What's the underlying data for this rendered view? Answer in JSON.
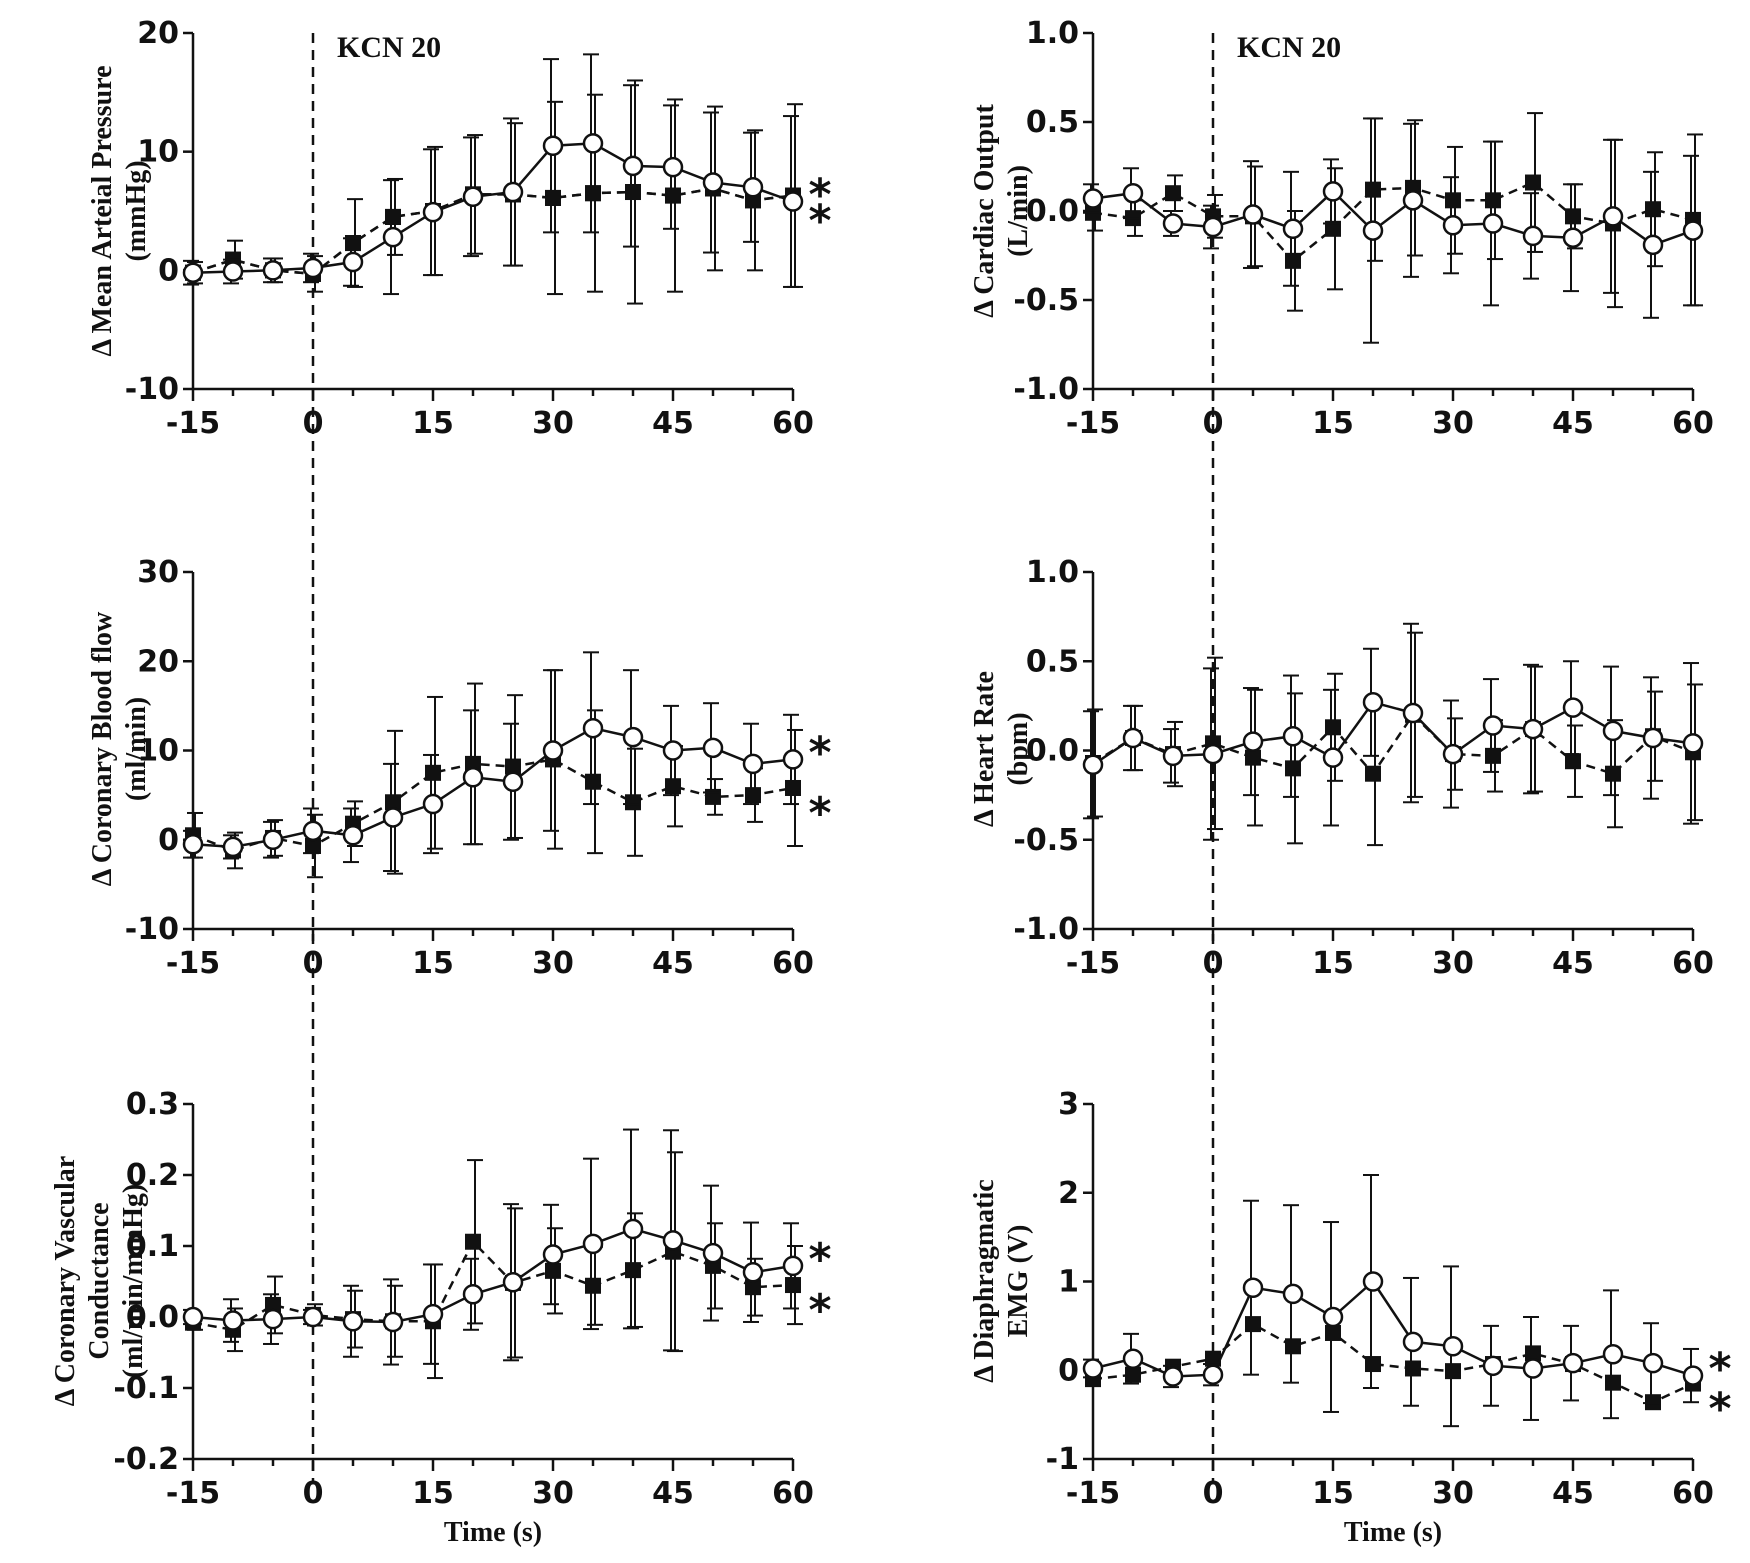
{
  "chart_data": [
    {
      "id": "map",
      "type": "line",
      "ylabel_lines": [
        "Δ Mean Arteial Pressure",
        "(mmHg)"
      ],
      "xlabel": "",
      "annotation": "KCN 20",
      "ylim": [
        -10,
        20
      ],
      "yticks": [
        20,
        10,
        0,
        -10
      ],
      "ytick_labels": [
        "20",
        "10",
        "0",
        "-10"
      ],
      "xlim": [
        -15,
        60
      ],
      "xticks": [
        -15,
        0,
        15,
        30,
        45,
        60
      ],
      "xtick_labels": [
        "-15",
        "0",
        "15",
        "30",
        "45",
        "60"
      ],
      "markers": [
        "*",
        "*"
      ],
      "x": [
        -15,
        -10,
        -5,
        0,
        5,
        10,
        15,
        20,
        25,
        30,
        35,
        40,
        45,
        50,
        55,
        60
      ],
      "series": [
        {
          "name": "open-circles",
          "marker": "circle",
          "values": [
            -0.2,
            -0.1,
            0.0,
            0.2,
            0.7,
            2.8,
            4.9,
            6.2,
            6.6,
            10.5,
            10.7,
            8.8,
            8.7,
            7.4,
            7.0,
            5.8
          ],
          "err": [
            1.0,
            1.0,
            1.0,
            1.2,
            2.0,
            4.8,
            5.3,
            5.0,
            6.2,
            7.3,
            7.5,
            6.8,
            5.2,
            5.9,
            4.6,
            7.2
          ]
        },
        {
          "name": "filled-squares",
          "marker": "square",
          "values": [
            -0.2,
            0.9,
            0.0,
            -0.3,
            2.3,
            4.5,
            5.0,
            6.4,
            6.4,
            6.1,
            6.5,
            6.6,
            6.3,
            6.9,
            5.9,
            6.3
          ]
        },
        {
          "name": "filled-squares",
          "marker": "square",
          "values": [
            -0.2,
            0.9,
            0.0,
            -0.3,
            2.3,
            4.5,
            5.0,
            6.4,
            6.4,
            6.1,
            6.5,
            6.6,
            6.3,
            6.9,
            5.9,
            6.3
          ],
          "err": [
            0.9,
            1.6,
            1.0,
            1.5,
            3.7,
            3.2,
            5.4,
            5.0,
            6.0,
            8.1,
            8.3,
            9.4,
            8.1,
            6.9,
            5.9,
            7.7
          ]
        }
      ]
    },
    {
      "id": "cbf",
      "type": "line",
      "ylabel_lines": [
        "Δ Coronary Blood flow",
        "(ml/min)"
      ],
      "xlabel": "",
      "annotation": "",
      "ylim": [
        -10,
        30
      ],
      "yticks": [
        30,
        20,
        10,
        0,
        -10
      ],
      "ytick_labels": [
        "30",
        "20",
        "10",
        "0",
        "-10"
      ],
      "xlim": [
        -15,
        60
      ],
      "xticks": [
        -15,
        0,
        15,
        30,
        45,
        60
      ],
      "xtick_labels": [
        "-15",
        "0",
        "15",
        "30",
        "45",
        "60"
      ],
      "markers": [
        "*",
        "*"
      ],
      "x": [
        -15,
        -10,
        -5,
        0,
        5,
        10,
        15,
        20,
        25,
        30,
        35,
        40,
        45,
        50,
        55,
        60
      ],
      "series": [
        {
          "name": "open-circles",
          "marker": "circle",
          "values": [
            -0.5,
            -0.8,
            0.0,
            1.0,
            0.5,
            2.5,
            4.0,
            7.0,
            6.5,
            10.0,
            12.5,
            11.5,
            10.0,
            10.3,
            8.5,
            9.0
          ],
          "err": [
            1.5,
            1.3,
            2.0,
            2.5,
            3.0,
            6.0,
            5.5,
            7.5,
            6.5,
            9.0,
            8.5,
            7.5,
            5.0,
            5.0,
            4.5,
            5.0
          ]
        },
        {
          "name": "filled-squares",
          "marker": "square",
          "values": [
            0.5,
            -1.2,
            0.2,
            -0.7,
            1.8,
            4.2,
            7.5,
            8.5,
            8.2,
            9.0,
            6.5,
            4.2,
            6.0,
            4.8,
            5.0,
            5.8
          ],
          "err": [
            2.5,
            2.0,
            2.0,
            3.5,
            2.5,
            8.0,
            8.5,
            9.0,
            8.0,
            10.0,
            8.0,
            6.0,
            4.5,
            2.0,
            3.0,
            6.5
          ]
        }
      ]
    },
    {
      "id": "cvc",
      "type": "line",
      "ylabel_lines": [
        "Δ Coronary Vascular",
        "Conductance",
        "(ml/min/mmHg)"
      ],
      "xlabel": "Time (s)",
      "annotation": "",
      "ylim": [
        -0.2,
        0.3
      ],
      "yticks": [
        0.3,
        0.2,
        0.1,
        0.0,
        -0.1,
        -0.2
      ],
      "ytick_labels": [
        "0.3",
        "0.2",
        "0.1",
        "0.0",
        "-0.1",
        "-0.2"
      ],
      "xlim": [
        -15,
        60
      ],
      "xticks": [
        -15,
        0,
        15,
        30,
        45,
        60
      ],
      "xtick_labels": [
        "-15",
        "0",
        "15",
        "30",
        "45",
        "60"
      ],
      "markers": [
        "*",
        "*"
      ],
      "x": [
        -15,
        -10,
        -5,
        0,
        5,
        10,
        15,
        20,
        25,
        30,
        35,
        40,
        45,
        50,
        55,
        60
      ],
      "series": [
        {
          "name": "open-circles",
          "marker": "circle",
          "values": [
            0.0,
            -0.005,
            -0.003,
            0.0,
            -0.006,
            -0.007,
            0.004,
            0.032,
            0.049,
            0.088,
            0.103,
            0.124,
            0.108,
            0.09,
            0.063,
            0.072
          ],
          "err": [
            0.01,
            0.03,
            0.035,
            0.01,
            0.05,
            0.06,
            0.07,
            0.05,
            0.11,
            0.07,
            0.12,
            0.14,
            0.155,
            0.095,
            0.07,
            0.06
          ]
        },
        {
          "name": "filled-squares",
          "marker": "square",
          "values": [
            -0.008,
            -0.018,
            0.017,
            0.003,
            -0.003,
            -0.006,
            -0.006,
            0.106,
            0.048,
            0.065,
            0.044,
            0.066,
            0.092,
            0.072,
            0.042,
            0.045
          ],
          "err": [
            0.01,
            0.03,
            0.04,
            0.015,
            0.04,
            0.05,
            0.08,
            0.115,
            0.105,
            0.06,
            0.055,
            0.08,
            0.14,
            0.06,
            0.04,
            0.055
          ]
        }
      ]
    },
    {
      "id": "co",
      "type": "line",
      "ylabel_lines": [
        "Δ Cardiac Output",
        "(L/min)"
      ],
      "xlabel": "",
      "annotation": "KCN 20",
      "ylim": [
        -1.0,
        1.0
      ],
      "yticks": [
        1.0,
        0.5,
        0.0,
        -0.5,
        -1.0
      ],
      "ytick_labels": [
        "1.0",
        "0.5",
        "0.0",
        "-0.5",
        "-1.0"
      ],
      "xlim": [
        -15,
        60
      ],
      "xticks": [
        -15,
        0,
        15,
        30,
        45,
        60
      ],
      "xtick_labels": [
        "-15",
        "0",
        "15",
        "30",
        "45",
        "60"
      ],
      "markers": [],
      "x": [
        -15,
        -10,
        -5,
        0,
        5,
        10,
        15,
        20,
        25,
        30,
        35,
        40,
        45,
        50,
        55,
        60
      ],
      "series": [
        {
          "name": "open-circles",
          "marker": "circle",
          "values": [
            0.07,
            0.1,
            -0.07,
            -0.09,
            -0.02,
            -0.1,
            0.11,
            -0.11,
            0.06,
            -0.08,
            -0.07,
            -0.14,
            -0.15,
            -0.03,
            -0.19,
            -0.11
          ],
          "err": [
            0.08,
            0.14,
            0.07,
            0.12,
            0.3,
            0.32,
            0.18,
            0.63,
            0.43,
            0.27,
            0.46,
            0.24,
            0.3,
            0.43,
            0.41,
            0.42
          ]
        },
        {
          "name": "filled-squares",
          "marker": "square",
          "values": [
            -0.01,
            -0.04,
            0.1,
            -0.03,
            -0.03,
            -0.28,
            -0.1,
            0.12,
            0.13,
            0.06,
            0.06,
            0.16,
            -0.03,
            -0.07,
            0.01,
            -0.05
          ],
          "err": [
            0.1,
            0.1,
            0.1,
            0.12,
            0.28,
            0.28,
            0.34,
            0.4,
            0.38,
            0.3,
            0.33,
            0.39,
            0.18,
            0.47,
            0.32,
            0.48
          ]
        }
      ]
    },
    {
      "id": "hr",
      "type": "line",
      "ylabel_lines": [
        "Δ Heart Rate",
        "(bpm)"
      ],
      "xlabel": "",
      "annotation": "",
      "ylim": [
        -1.0,
        1.0
      ],
      "yticks": [
        1.0,
        0.5,
        0.0,
        -0.5,
        -1.0
      ],
      "ytick_labels": [
        "1.0",
        "0.5",
        "0.0",
        "-0.5",
        "-1.0"
      ],
      "xlim": [
        -15,
        60
      ],
      "xticks": [
        -15,
        0,
        15,
        30,
        45,
        60
      ],
      "xtick_labels": [
        "-15",
        "0",
        "15",
        "30",
        "45",
        "60"
      ],
      "markers": [],
      "x": [
        -15,
        -10,
        -5,
        0,
        5,
        10,
        15,
        20,
        25,
        30,
        35,
        40,
        45,
        50,
        55,
        60
      ],
      "series": [
        {
          "name": "open-circles",
          "marker": "circle",
          "values": [
            -0.08,
            0.07,
            -0.03,
            -0.02,
            0.05,
            0.08,
            -0.04,
            0.27,
            0.21,
            -0.02,
            0.14,
            0.12,
            0.24,
            0.11,
            0.07,
            0.04
          ],
          "err": [
            0.3,
            0.18,
            0.15,
            0.48,
            0.3,
            0.34,
            0.38,
            0.3,
            0.5,
            0.3,
            0.26,
            0.36,
            0.26,
            0.36,
            0.34,
            0.45
          ]
        },
        {
          "name": "filled-squares",
          "marker": "square",
          "values": [
            -0.07,
            0.07,
            -0.02,
            0.04,
            -0.04,
            -0.1,
            0.13,
            -0.13,
            0.2,
            -0.02,
            -0.03,
            0.12,
            -0.06,
            -0.13,
            0.08,
            -0.01
          ],
          "err": [
            0.3,
            0.18,
            0.18,
            0.48,
            0.38,
            0.42,
            0.3,
            0.4,
            0.46,
            0.2,
            0.2,
            0.35,
            0.2,
            0.3,
            0.25,
            0.38
          ]
        }
      ]
    },
    {
      "id": "emg",
      "type": "line",
      "ylabel_lines": [
        "Δ Diaphragmatic",
        "EMG (V)"
      ],
      "xlabel": "Time (s)",
      "annotation": "",
      "ylim": [
        -1,
        3
      ],
      "yticks": [
        3,
        2,
        1,
        0,
        -1
      ],
      "ytick_labels": [
        "3",
        "2",
        "1",
        "0",
        "-1"
      ],
      "xlim": [
        -15,
        60
      ],
      "xticks": [
        -15,
        0,
        15,
        30,
        45,
        60
      ],
      "xtick_labels": [
        "-15",
        "0",
        "15",
        "30",
        "45",
        "60"
      ],
      "markers": [
        "*",
        "*"
      ],
      "x": [
        -15,
        -10,
        -5,
        0,
        5,
        10,
        15,
        20,
        25,
        30,
        35,
        40,
        45,
        50,
        55,
        60
      ],
      "series": [
        {
          "name": "open-circles",
          "marker": "circle",
          "values": [
            0.02,
            0.13,
            -0.07,
            -0.05,
            0.93,
            0.86,
            0.6,
            1.0,
            0.32,
            0.27,
            0.05,
            0.02,
            0.08,
            0.18,
            0.08,
            -0.06
          ],
          "err": [
            0.1,
            0.28,
            0.12,
            0.12,
            0.98,
            1.0,
            1.07,
            1.2,
            0.72,
            0.9,
            0.45,
            0.58,
            0.42,
            0.72,
            0.45,
            0.3
          ]
        },
        {
          "name": "filled-squares",
          "marker": "square",
          "values": [
            -0.1,
            -0.05,
            0.04,
            0.13,
            0.52,
            0.27,
            0.42,
            0.07,
            0.02,
            -0.01,
            0.07,
            0.19,
            0.07,
            -0.14,
            -0.36,
            -0.15
          ]
        }
      ]
    }
  ]
}
